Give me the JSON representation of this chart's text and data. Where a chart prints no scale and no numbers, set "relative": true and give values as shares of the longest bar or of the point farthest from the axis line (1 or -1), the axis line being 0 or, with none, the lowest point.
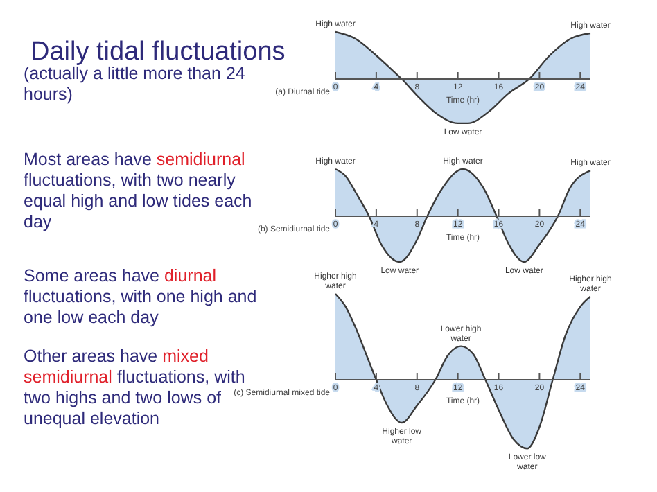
{
  "chart_data": [
    {
      "type": "other",
      "title": "Daily tidal fluctuations",
      "annotations": [
        "(actually a little more than 24 hours)",
        "Most areas have ",
        "semidiurnal",
        " fluctuations, with two nearly equal high and low tides each day",
        "Some areas have ",
        "diurnal",
        " fluctuations, with one high and one low each day",
        "Other areas have ",
        "mixed semidiurnal",
        " fluctuations, with ",
        "two highs and two lows of unequal elevation"
      ],
      "colors": [
        "#2e2a7a",
        "#2e2a7a",
        "#e0202a",
        "#2e2a7a",
        "#2e2a7a",
        "#e0202a",
        "#2e2a7a",
        "#2e2a7a",
        "#e0202a",
        "#2e2a7a",
        "#2e2a7a"
      ]
    },
    {
      "type": "area",
      "relative": true,
      "title": "(a) Diurnal tide",
      "xlabel": "Time (hr)",
      "xlim": [
        0,
        25
      ],
      "xticks": [
        0,
        4,
        8,
        12,
        16,
        20,
        24
      ],
      "color": "#c6daee",
      "x": [
        0,
        2,
        4,
        6,
        6.5,
        8,
        10,
        12,
        13,
        15,
        17,
        19,
        21,
        23,
        25
      ],
      "values": [
        1,
        0.85,
        0.5,
        0.1,
        0,
        -0.35,
        -0.75,
        -0.94,
        -0.94,
        -0.7,
        -0.3,
        0,
        0.5,
        0.85,
        0.97
      ],
      "annotations": [
        {
          "text": "High water",
          "x": 0,
          "y": 1
        },
        {
          "text": "Low water",
          "x": 12.5,
          "y": -0.94
        },
        {
          "text": "High water",
          "x": 25,
          "y": 0.97
        }
      ]
    },
    {
      "type": "area",
      "relative": true,
      "title": "(b) Semidiurnal tide",
      "xlabel": "Time (hr)",
      "xlim": [
        0,
        25
      ],
      "xticks": [
        0,
        4,
        8,
        12,
        16,
        20,
        24
      ],
      "color": "#c6daee",
      "x": [
        0,
        1,
        2,
        3.3,
        4.5,
        6.3,
        8,
        9,
        10.5,
        12.5,
        14.5,
        15.8,
        17,
        18.5,
        20,
        21.8,
        23,
        25
      ],
      "values": [
        1,
        0.85,
        0.5,
        0,
        -0.6,
        -0.97,
        -0.5,
        0,
        0.6,
        1,
        0.6,
        0,
        -0.6,
        -0.97,
        -0.6,
        0,
        0.6,
        0.97
      ],
      "annotations": [
        {
          "text": "High water",
          "x": 0,
          "y": 1
        },
        {
          "text": "Low water",
          "x": 6.3,
          "y": -0.97
        },
        {
          "text": "High water",
          "x": 12.5,
          "y": 1
        },
        {
          "text": "Low water",
          "x": 18.5,
          "y": -0.97
        },
        {
          "text": "High water",
          "x": 25,
          "y": 0.97
        }
      ]
    },
    {
      "type": "area",
      "relative": true,
      "title": "(c) Semidiurnal mixed tide",
      "xlabel": "Time (hr)",
      "xlim": [
        0,
        25
      ],
      "xticks": [
        0,
        4,
        8,
        12,
        16,
        20,
        24
      ],
      "color": "#c6daee",
      "x": [
        0,
        1,
        2,
        3,
        4,
        5,
        6.5,
        8,
        9.8,
        11,
        12.3,
        13.5,
        14.7,
        16,
        17.5,
        18.8,
        20,
        21.3,
        22.5,
        24,
        25
      ],
      "values": [
        1,
        0.85,
        0.6,
        0.3,
        0,
        -0.28,
        -0.5,
        -0.3,
        0,
        0.28,
        0.39,
        0.3,
        0,
        -0.35,
        -0.7,
        -0.8,
        -0.55,
        0,
        0.5,
        0.85,
        0.97
      ],
      "annotations": [
        {
          "text": "Higher high water",
          "x": 0,
          "y": 1
        },
        {
          "text": "Higher low water",
          "x": 6.5,
          "y": -0.5
        },
        {
          "text": "Lower high water",
          "x": 12.3,
          "y": 0.39
        },
        {
          "text": "Lower low water",
          "x": 18.8,
          "y": -0.8
        },
        {
          "text": "Higher high water",
          "x": 25,
          "y": 0.97
        }
      ]
    }
  ]
}
